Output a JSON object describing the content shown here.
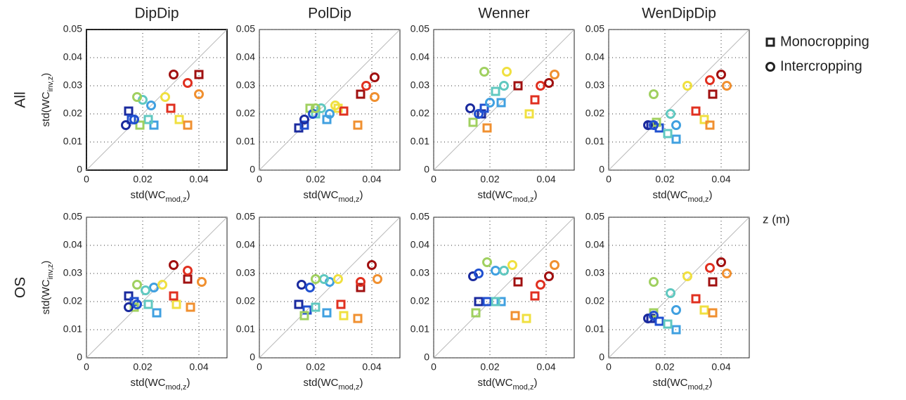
{
  "chart_data": [
    {
      "type": "scatter",
      "title": "DipDip",
      "row_label": "All",
      "ylabel": [
        "std(WC",
        "inv,z",
        ")"
      ],
      "xlabel": [
        "std(WC",
        "mod,z",
        ")"
      ],
      "xlim": [
        0,
        0.05
      ],
      "ylim": [
        0,
        0.05
      ],
      "xticks": [
        0,
        0.02,
        0.04
      ],
      "yticks": [
        0,
        0.01,
        0.02,
        0.03,
        0.04,
        0.05
      ],
      "grid": true,
      "series": [
        {
          "name": "Monocropping",
          "marker": "square",
          "x": [
            0.015,
            0.016,
            0.024,
            0.022,
            0.019,
            0.033,
            0.036,
            0.03,
            0.04
          ],
          "values": [
            0.021,
            0.018,
            0.016,
            0.018,
            0.016,
            0.018,
            0.016,
            0.022,
            0.034
          ],
          "colors": [
            "#1a2a9e",
            "#2050d0",
            "#40a0e0",
            "#60c8c0",
            "#a0d060",
            "#f0e040",
            "#f09030",
            "#e03020",
            "#a01010"
          ]
        },
        {
          "name": "Intercropping",
          "marker": "circle",
          "x": [
            0.014,
            0.017,
            0.023,
            0.02,
            0.018,
            0.028,
            0.04,
            0.036,
            0.031
          ],
          "values": [
            0.016,
            0.018,
            0.023,
            0.025,
            0.026,
            0.026,
            0.027,
            0.031,
            0.034
          ],
          "colors": [
            "#1a2a9e",
            "#2050d0",
            "#40a0e0",
            "#60c8c0",
            "#a0d060",
            "#f0e040",
            "#f09030",
            "#e03020",
            "#a01010"
          ]
        }
      ]
    },
    {
      "type": "scatter",
      "title": "PolDip",
      "xlabel": [
        "std(WC",
        "mod,z",
        ")"
      ],
      "xlim": [
        0,
        0.05
      ],
      "ylim": [
        0,
        0.05
      ],
      "xticks": [
        0,
        0.02,
        0.04
      ],
      "yticks": [
        0,
        0.01,
        0.02,
        0.03,
        0.04,
        0.05
      ],
      "grid": true,
      "series": [
        {
          "name": "Monocropping",
          "marker": "square",
          "x": [
            0.014,
            0.016,
            0.024,
            0.02,
            0.018,
            0.028,
            0.035,
            0.03,
            0.036
          ],
          "values": [
            0.015,
            0.016,
            0.018,
            0.02,
            0.022,
            0.022,
            0.016,
            0.021,
            0.027
          ],
          "colors": [
            "#1a2a9e",
            "#2050d0",
            "#40a0e0",
            "#60c8c0",
            "#a0d060",
            "#f0e040",
            "#f09030",
            "#e03020",
            "#a01010"
          ]
        },
        {
          "name": "Intercropping",
          "marker": "circle",
          "x": [
            0.016,
            0.019,
            0.025,
            0.022,
            0.02,
            0.027,
            0.041,
            0.038,
            0.041
          ],
          "values": [
            0.018,
            0.02,
            0.02,
            0.022,
            0.022,
            0.023,
            0.026,
            0.03,
            0.033
          ],
          "colors": [
            "#1a2a9e",
            "#2050d0",
            "#40a0e0",
            "#60c8c0",
            "#a0d060",
            "#f0e040",
            "#f09030",
            "#e03020",
            "#a01010"
          ]
        }
      ]
    },
    {
      "type": "scatter",
      "title": "Wenner",
      "xlabel": [
        "std(WC",
        "mod,z",
        ")"
      ],
      "xlim": [
        0,
        0.05
      ],
      "ylim": [
        0,
        0.05
      ],
      "xticks": [
        0,
        0.02,
        0.04
      ],
      "yticks": [
        0,
        0.01,
        0.02,
        0.03,
        0.04,
        0.05
      ],
      "grid": true,
      "series": [
        {
          "name": "Monocropping",
          "marker": "square",
          "x": [
            0.017,
            0.018,
            0.024,
            0.022,
            0.014,
            0.034,
            0.019,
            0.036,
            0.03
          ],
          "values": [
            0.02,
            0.022,
            0.024,
            0.028,
            0.017,
            0.02,
            0.015,
            0.025,
            0.03
          ],
          "colors": [
            "#1a2a9e",
            "#2050d0",
            "#40a0e0",
            "#60c8c0",
            "#a0d060",
            "#f0e040",
            "#f09030",
            "#e03020",
            "#a01010"
          ]
        },
        {
          "name": "Intercropping",
          "marker": "circle",
          "x": [
            0.013,
            0.016,
            0.02,
            0.025,
            0.018,
            0.026,
            0.043,
            0.038,
            0.041
          ],
          "values": [
            0.022,
            0.02,
            0.024,
            0.03,
            0.035,
            0.035,
            0.034,
            0.03,
            0.031
          ],
          "colors": [
            "#1a2a9e",
            "#2050d0",
            "#40a0e0",
            "#60c8c0",
            "#a0d060",
            "#f0e040",
            "#f09030",
            "#e03020",
            "#a01010"
          ]
        }
      ]
    },
    {
      "type": "scatter",
      "title": "WenDipDip",
      "xlabel": [
        "std(WC",
        "mod,z",
        ")"
      ],
      "xlim": [
        0,
        0.05
      ],
      "ylim": [
        0,
        0.05
      ],
      "xticks": [
        0,
        0.02,
        0.04
      ],
      "yticks": [
        0,
        0.01,
        0.02,
        0.03,
        0.04,
        0.05
      ],
      "grid": true,
      "series": [
        {
          "name": "Monocropping",
          "marker": "square",
          "x": [
            0.015,
            0.018,
            0.024,
            0.021,
            0.017,
            0.034,
            0.036,
            0.031,
            0.037
          ],
          "values": [
            0.016,
            0.015,
            0.011,
            0.013,
            0.017,
            0.018,
            0.016,
            0.021,
            0.027
          ],
          "colors": [
            "#1a2a9e",
            "#2050d0",
            "#40a0e0",
            "#60c8c0",
            "#a0d060",
            "#f0e040",
            "#f09030",
            "#e03020",
            "#a01010"
          ]
        },
        {
          "name": "Intercropping",
          "marker": "circle",
          "x": [
            0.014,
            0.016,
            0.024,
            0.022,
            0.016,
            0.028,
            0.042,
            0.036,
            0.04
          ],
          "values": [
            0.016,
            0.016,
            0.016,
            0.02,
            0.027,
            0.03,
            0.03,
            0.032,
            0.034
          ],
          "colors": [
            "#1a2a9e",
            "#2050d0",
            "#40a0e0",
            "#60c8c0",
            "#a0d060",
            "#f0e040",
            "#f09030",
            "#e03020",
            "#a01010"
          ]
        }
      ]
    },
    {
      "type": "scatter",
      "row_label": "OS",
      "ylabel": [
        "std(WC",
        "inv,z",
        ")"
      ],
      "xlabel": [
        "std(WC",
        "mod,z",
        ")"
      ],
      "xlim": [
        0,
        0.05
      ],
      "ylim": [
        0,
        0.05
      ],
      "xticks": [
        0,
        0.02,
        0.04
      ],
      "yticks": [
        0,
        0.01,
        0.02,
        0.03,
        0.04,
        0.05
      ],
      "grid": true,
      "series": [
        {
          "name": "Monocropping",
          "marker": "square",
          "x": [
            0.015,
            0.017,
            0.025,
            0.022,
            0.017,
            0.032,
            0.037,
            0.031,
            0.036
          ],
          "values": [
            0.022,
            0.02,
            0.016,
            0.019,
            0.018,
            0.019,
            0.018,
            0.022,
            0.028
          ],
          "colors": [
            "#1a2a9e",
            "#2050d0",
            "#40a0e0",
            "#60c8c0",
            "#a0d060",
            "#f0e040",
            "#f09030",
            "#e03020",
            "#a01010"
          ]
        },
        {
          "name": "Intercropping",
          "marker": "circle",
          "x": [
            0.015,
            0.018,
            0.024,
            0.021,
            0.018,
            0.027,
            0.041,
            0.036,
            0.031
          ],
          "values": [
            0.018,
            0.019,
            0.025,
            0.024,
            0.026,
            0.026,
            0.027,
            0.031,
            0.033
          ],
          "colors": [
            "#1a2a9e",
            "#2050d0",
            "#40a0e0",
            "#60c8c0",
            "#a0d060",
            "#f0e040",
            "#f09030",
            "#e03020",
            "#a01010"
          ]
        }
      ]
    },
    {
      "type": "scatter",
      "xlabel": [
        "std(WC",
        "mod,z",
        ")"
      ],
      "xlim": [
        0,
        0.05
      ],
      "ylim": [
        0,
        0.05
      ],
      "xticks": [
        0,
        0.02,
        0.04
      ],
      "yticks": [
        0,
        0.01,
        0.02,
        0.03,
        0.04,
        0.05
      ],
      "grid": true,
      "series": [
        {
          "name": "Monocropping",
          "marker": "square",
          "x": [
            0.014,
            0.017,
            0.024,
            0.02,
            0.016,
            0.03,
            0.035,
            0.029,
            0.036
          ],
          "values": [
            0.019,
            0.017,
            0.016,
            0.018,
            0.015,
            0.015,
            0.014,
            0.019,
            0.025
          ],
          "colors": [
            "#1a2a9e",
            "#2050d0",
            "#40a0e0",
            "#60c8c0",
            "#a0d060",
            "#f0e040",
            "#f09030",
            "#e03020",
            "#a01010"
          ]
        },
        {
          "name": "Intercropping",
          "marker": "circle",
          "x": [
            0.015,
            0.018,
            0.025,
            0.023,
            0.02,
            0.028,
            0.042,
            0.036,
            0.04
          ],
          "values": [
            0.026,
            0.025,
            0.027,
            0.028,
            0.028,
            0.028,
            0.028,
            0.027,
            0.033
          ],
          "colors": [
            "#1a2a9e",
            "#2050d0",
            "#40a0e0",
            "#60c8c0",
            "#a0d060",
            "#f0e040",
            "#f09030",
            "#e03020",
            "#a01010"
          ]
        }
      ]
    },
    {
      "type": "scatter",
      "xlabel": [
        "std(WC",
        "mod,z",
        ")"
      ],
      "xlim": [
        0,
        0.05
      ],
      "ylim": [
        0,
        0.05
      ],
      "xticks": [
        0,
        0.02,
        0.04
      ],
      "yticks": [
        0,
        0.01,
        0.02,
        0.03,
        0.04,
        0.05
      ],
      "grid": true,
      "series": [
        {
          "name": "Monocropping",
          "marker": "square",
          "x": [
            0.016,
            0.019,
            0.024,
            0.022,
            0.015,
            0.033,
            0.029,
            0.036,
            0.03
          ],
          "values": [
            0.02,
            0.02,
            0.02,
            0.02,
            0.016,
            0.014,
            0.015,
            0.022,
            0.027
          ],
          "colors": [
            "#1a2a9e",
            "#2050d0",
            "#40a0e0",
            "#60c8c0",
            "#a0d060",
            "#f0e040",
            "#f09030",
            "#e03020",
            "#a01010"
          ]
        },
        {
          "name": "Intercropping",
          "marker": "circle",
          "x": [
            0.014,
            0.016,
            0.022,
            0.025,
            0.019,
            0.028,
            0.043,
            0.038,
            0.041
          ],
          "values": [
            0.029,
            0.03,
            0.031,
            0.031,
            0.034,
            0.033,
            0.033,
            0.026,
            0.029
          ],
          "colors": [
            "#1a2a9e",
            "#2050d0",
            "#40a0e0",
            "#60c8c0",
            "#a0d060",
            "#f0e040",
            "#f09030",
            "#e03020",
            "#a01010"
          ]
        }
      ]
    },
    {
      "type": "scatter",
      "xlabel": [
        "std(WC",
        "mod,z",
        ")"
      ],
      "xlim": [
        0,
        0.05
      ],
      "ylim": [
        0,
        0.05
      ],
      "xticks": [
        0,
        0.02,
        0.04
      ],
      "yticks": [
        0,
        0.01,
        0.02,
        0.03,
        0.04,
        0.05
      ],
      "grid": true,
      "series": [
        {
          "name": "Monocropping",
          "marker": "square",
          "x": [
            0.015,
            0.018,
            0.024,
            0.021,
            0.016,
            0.034,
            0.037,
            0.031,
            0.037
          ],
          "values": [
            0.014,
            0.013,
            0.01,
            0.012,
            0.016,
            0.017,
            0.016,
            0.021,
            0.027
          ],
          "colors": [
            "#1a2a9e",
            "#2050d0",
            "#40a0e0",
            "#60c8c0",
            "#a0d060",
            "#f0e040",
            "#f09030",
            "#e03020",
            "#a01010"
          ]
        },
        {
          "name": "Intercropping",
          "marker": "circle",
          "x": [
            0.014,
            0.016,
            0.024,
            0.022,
            0.016,
            0.028,
            0.042,
            0.036,
            0.04
          ],
          "values": [
            0.014,
            0.015,
            0.017,
            0.023,
            0.027,
            0.029,
            0.03,
            0.032,
            0.034
          ],
          "colors": [
            "#1a2a9e",
            "#2050d0",
            "#40a0e0",
            "#60c8c0",
            "#a0d060",
            "#f0e040",
            "#f09030",
            "#e03020",
            "#a01010"
          ]
        }
      ]
    }
  ],
  "colorbar_label": "z (m)"
}
